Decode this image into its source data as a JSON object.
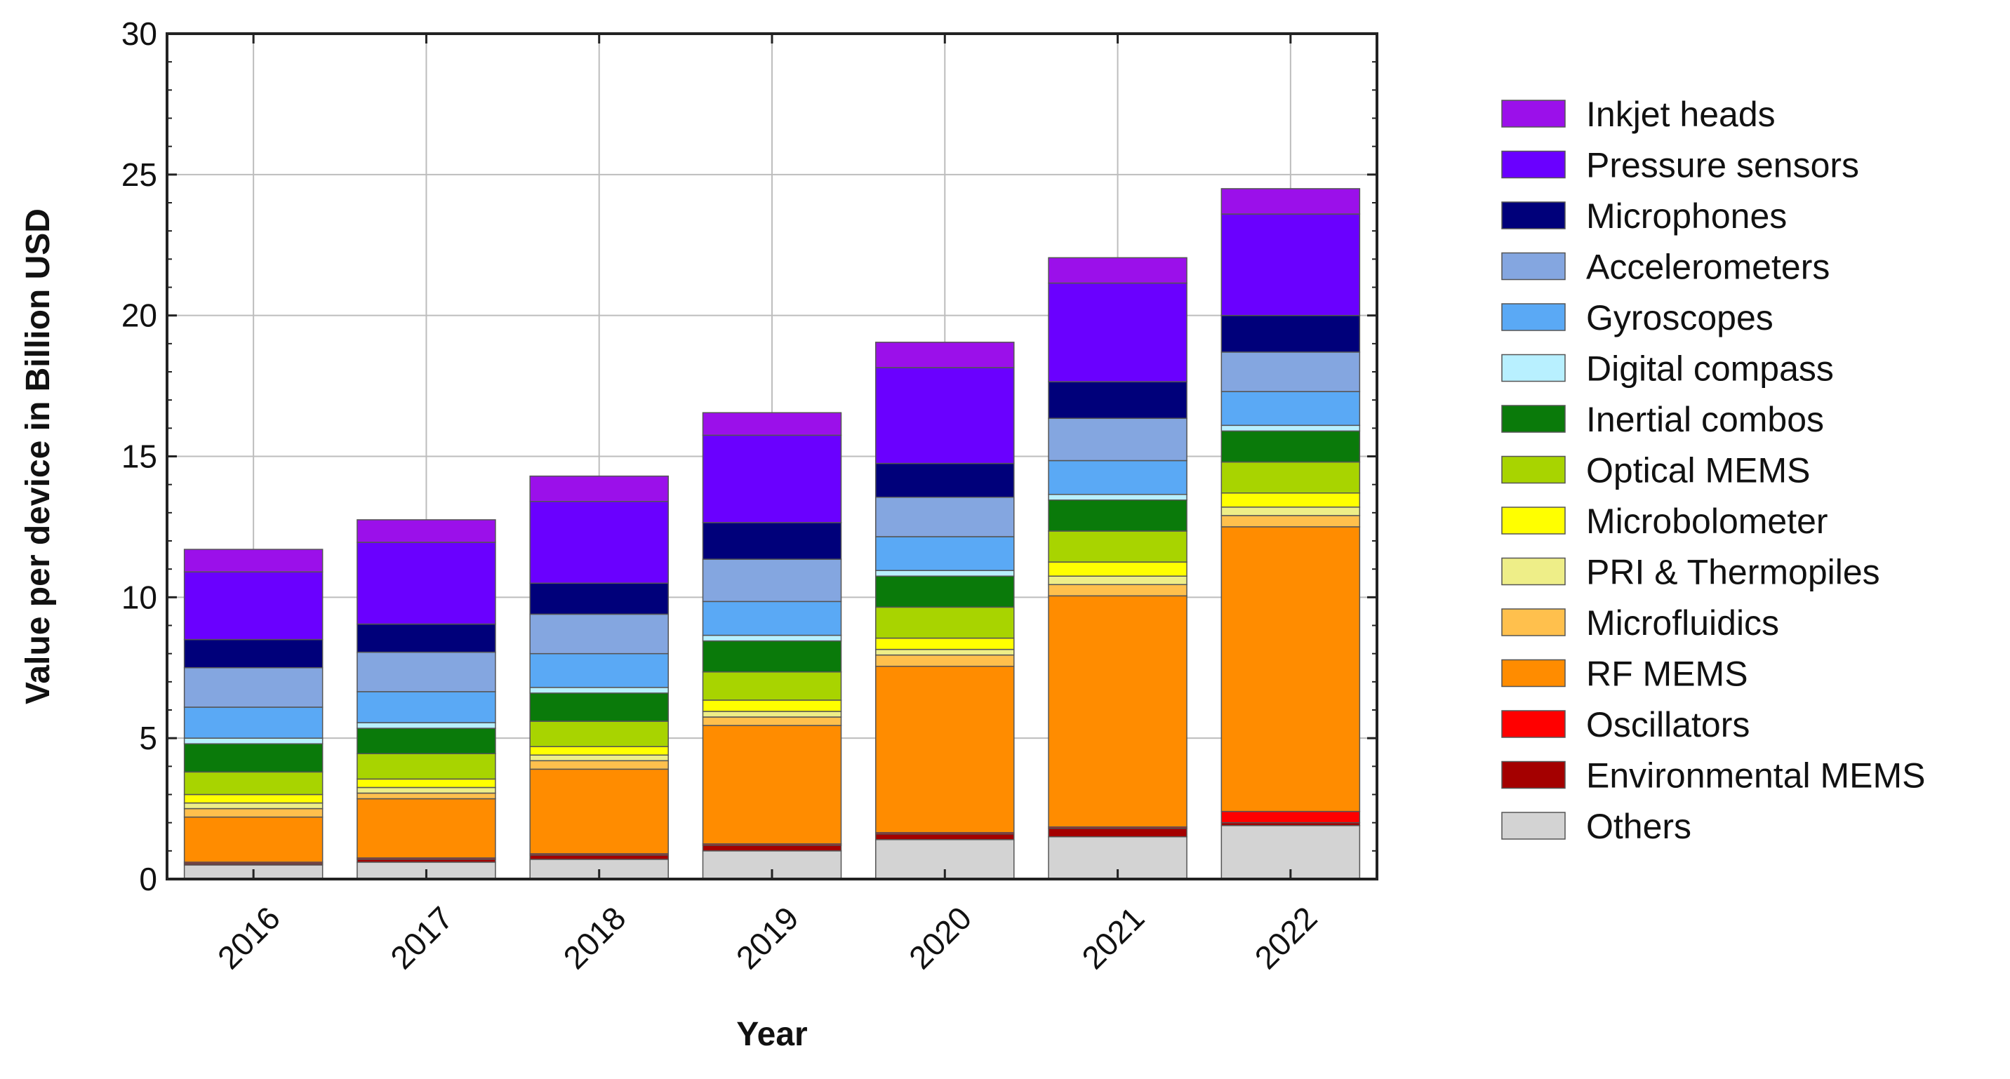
{
  "chart_data": {
    "type": "bar",
    "stacked": true,
    "title": "",
    "xlabel": "Year",
    "ylabel": "Value per device in Billion USD",
    "ylim": [
      0,
      30
    ],
    "yticks": [
      0,
      5,
      10,
      15,
      20,
      25,
      30
    ],
    "grid": true,
    "legend_position": "right",
    "categories": [
      "2016",
      "2017",
      "2018",
      "2019",
      "2020",
      "2021",
      "2022"
    ],
    "series": [
      {
        "name": "Others",
        "color": "#d3d3d3",
        "values": [
          0.5,
          0.6,
          0.7,
          1.0,
          1.4,
          1.5,
          1.9
        ]
      },
      {
        "name": "Environmental MEMS",
        "color": "#a40000",
        "values": [
          0.05,
          0.1,
          0.15,
          0.2,
          0.2,
          0.3,
          0.1
        ]
      },
      {
        "name": "Oscillators",
        "color": "#ff0000",
        "values": [
          0.05,
          0.05,
          0.05,
          0.05,
          0.05,
          0.05,
          0.4
        ]
      },
      {
        "name": "RF MEMS",
        "color": "#ff8c00",
        "values": [
          1.6,
          2.1,
          3.0,
          4.2,
          5.9,
          8.2,
          10.1
        ]
      },
      {
        "name": "Microfluidics",
        "color": "#ffc04d",
        "values": [
          0.3,
          0.2,
          0.3,
          0.3,
          0.4,
          0.4,
          0.4
        ]
      },
      {
        "name": "PRI & Thermopiles",
        "color": "#eeee88",
        "values": [
          0.2,
          0.2,
          0.2,
          0.2,
          0.2,
          0.3,
          0.3
        ]
      },
      {
        "name": "Microbolometer",
        "color": "#ffff00",
        "values": [
          0.3,
          0.3,
          0.3,
          0.4,
          0.4,
          0.5,
          0.5
        ]
      },
      {
        "name": "Optical MEMS",
        "color": "#a8d400",
        "values": [
          0.8,
          0.9,
          0.9,
          1.0,
          1.1,
          1.1,
          1.1
        ]
      },
      {
        "name": "Inertial combos",
        "color": "#0a7a0a",
        "values": [
          1.0,
          0.9,
          1.0,
          1.1,
          1.1,
          1.1,
          1.1
        ]
      },
      {
        "name": "Digital compass",
        "color": "#b8f0ff",
        "values": [
          0.2,
          0.2,
          0.2,
          0.2,
          0.2,
          0.2,
          0.2
        ]
      },
      {
        "name": "Gyroscopes",
        "color": "#5aa9f5",
        "values": [
          1.1,
          1.1,
          1.2,
          1.2,
          1.2,
          1.2,
          1.2
        ]
      },
      {
        "name": "Accelerometers",
        "color": "#84a6e0",
        "values": [
          1.4,
          1.4,
          1.4,
          1.5,
          1.4,
          1.5,
          1.4
        ]
      },
      {
        "name": "Microphones",
        "color": "#00007a",
        "values": [
          1.0,
          1.0,
          1.1,
          1.3,
          1.2,
          1.3,
          1.3
        ]
      },
      {
        "name": "Pressure sensors",
        "color": "#6a00ff",
        "values": [
          2.4,
          2.9,
          2.9,
          3.1,
          3.4,
          3.5,
          3.6
        ]
      },
      {
        "name": "Inkjet heads",
        "color": "#9b10ea",
        "values": [
          0.8,
          0.8,
          0.9,
          0.8,
          0.9,
          0.9,
          0.9
        ]
      }
    ]
  }
}
